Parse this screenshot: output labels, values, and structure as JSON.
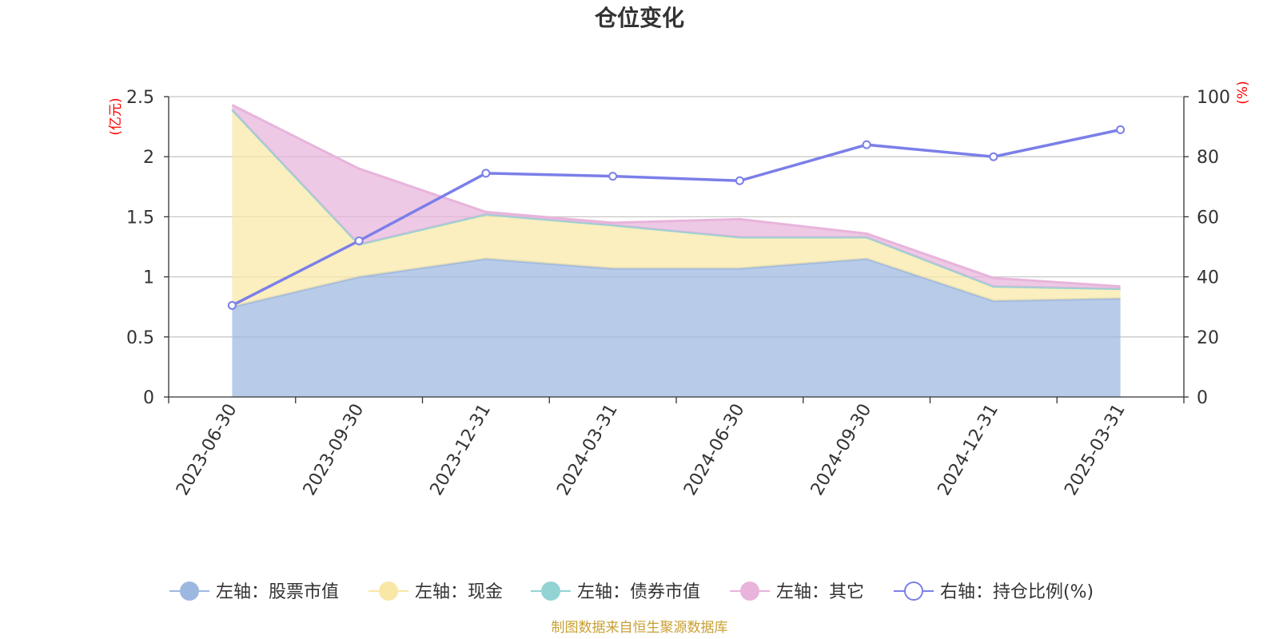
{
  "chart_data": {
    "type": "area",
    "title": "仓位变化",
    "x": [
      "2023-06-30",
      "2023-09-30",
      "2023-12-31",
      "2024-03-31",
      "2024-06-30",
      "2024-09-30",
      "2024-12-31",
      "2025-03-31"
    ],
    "left_axis": {
      "unit_label": "(亿元)",
      "ylim": [
        0,
        2.5
      ],
      "ticks": [
        "0",
        "0.5",
        "1",
        "1.5",
        "2",
        "2.5"
      ]
    },
    "right_axis": {
      "unit_label": "(%)",
      "ylim": [
        0,
        100
      ],
      "ticks": [
        "0",
        "20",
        "40",
        "60",
        "80",
        "100"
      ]
    },
    "series": [
      {
        "name": "左轴：股票市值",
        "axis": "left",
        "kind": "stacked-area",
        "color": "#9db8e0",
        "values": [
          0.75,
          1.0,
          1.15,
          1.07,
          1.07,
          1.15,
          0.8,
          0.82
        ]
      },
      {
        "name": "左轴：现金",
        "axis": "left",
        "kind": "stacked-area",
        "color": "#f9e7a6",
        "values": [
          1.64,
          0.27,
          0.37,
          0.36,
          0.26,
          0.18,
          0.12,
          0.08
        ]
      },
      {
        "name": "左轴：债券市值",
        "axis": "left",
        "kind": "stacked-area",
        "color": "#93d3d3",
        "values": [
          0,
          0,
          0,
          0,
          0,
          0,
          0,
          0
        ]
      },
      {
        "name": "左轴：其它",
        "axis": "left",
        "kind": "stacked-area",
        "color": "#e8b4db",
        "values": [
          0.04,
          0.63,
          0.02,
          0.02,
          0.15,
          0.03,
          0.07,
          0.02
        ]
      },
      {
        "name": "右轴：持仓比例(%)",
        "axis": "right",
        "kind": "line",
        "color": "#7b7fe8",
        "values": [
          30.5,
          52,
          74.5,
          73.5,
          72,
          84,
          80,
          89
        ]
      }
    ],
    "grid": true,
    "legend_position": "bottom"
  },
  "source_note": "制图数据来自恒生聚源数据库"
}
